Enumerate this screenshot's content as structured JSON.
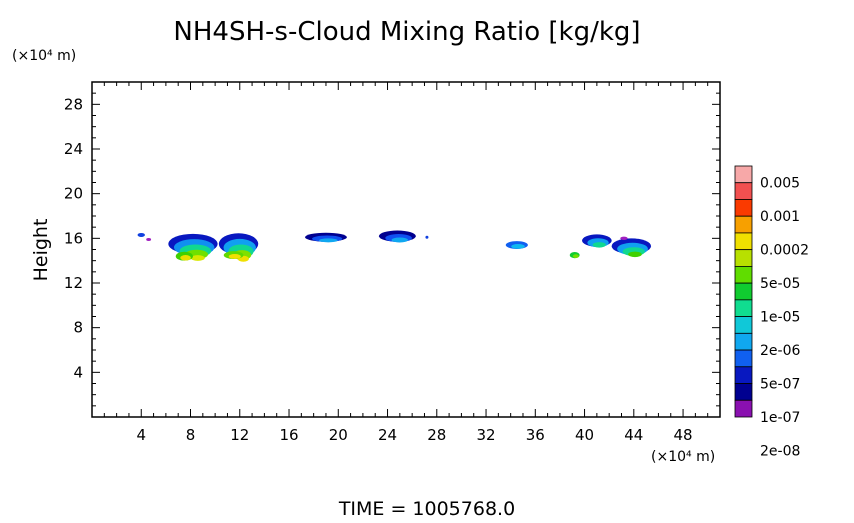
{
  "chart_data": {
    "type": "heatmap",
    "title": "NH4SH-s-Cloud Mixing Ratio [kg/kg]",
    "ylabel": "Height",
    "xlabel": "",
    "y_unit": "(×10⁴ m)",
    "x_unit": "(×10⁴ m)",
    "xlim": [
      0,
      51
    ],
    "ylim": [
      0,
      30
    ],
    "x_ticks": [
      "4",
      "8",
      "12",
      "16",
      "20",
      "24",
      "28",
      "32",
      "36",
      "40",
      "44",
      "48"
    ],
    "y_ticks": [
      "4",
      "8",
      "12",
      "16",
      "20",
      "24",
      "28"
    ],
    "colorbar": {
      "labels": [
        "0.005",
        "0.001",
        "0.0002",
        "5e-05",
        "1e-05",
        "2e-06",
        "5e-07",
        "1e-07",
        "2e-08"
      ],
      "colors": [
        "#f7a8a8",
        "#f25050",
        "#fa3a00",
        "#f7a000",
        "#f0e000",
        "#b8e000",
        "#60dd00",
        "#10cc30",
        "#10dd90",
        "#10c8d8",
        "#10a8f0",
        "#1060f0",
        "#0818c0",
        "#000090",
        "#8a10b0"
      ]
    },
    "cloud_cells": [
      {
        "x": 4.0,
        "y": 16.3,
        "rx": 0.3,
        "ry": 0.18,
        "levels": [
          "#1040e0"
        ]
      },
      {
        "x": 4.6,
        "y": 15.9,
        "rx": 0.2,
        "ry": 0.12,
        "levels": [
          "#a020c0"
        ]
      },
      {
        "x": 8.2,
        "y": 15.5,
        "rx": 2.0,
        "ry": 0.9,
        "levels": [
          "#0818c0",
          "#1090f0",
          "#10d890",
          "#70e000",
          "#d8e800"
        ]
      },
      {
        "x": 7.5,
        "y": 14.4,
        "rx": 0.7,
        "ry": 0.4,
        "levels": [
          "#40d000",
          "#e8e000"
        ]
      },
      {
        "x": 11.9,
        "y": 15.5,
        "rx": 1.6,
        "ry": 0.95,
        "levels": [
          "#0818c0",
          "#10a0f0",
          "#10d890",
          "#80e000",
          "#f0e000"
        ]
      },
      {
        "x": 11.5,
        "y": 14.5,
        "rx": 0.8,
        "ry": 0.35,
        "levels": [
          "#60d800",
          "#f0e000"
        ]
      },
      {
        "x": 19.0,
        "y": 16.1,
        "rx": 1.7,
        "ry": 0.4,
        "levels": [
          "#000090",
          "#1050f0",
          "#10a8f0"
        ]
      },
      {
        "x": 24.8,
        "y": 16.2,
        "rx": 1.5,
        "ry": 0.5,
        "levels": [
          "#000090",
          "#1050f0",
          "#10a8f0"
        ]
      },
      {
        "x": 27.2,
        "y": 16.1,
        "rx": 0.12,
        "ry": 0.08,
        "levels": [
          "#1040e0"
        ]
      },
      {
        "x": 34.5,
        "y": 15.4,
        "rx": 0.9,
        "ry": 0.35,
        "levels": [
          "#1060f0",
          "#10b8f0"
        ]
      },
      {
        "x": 39.2,
        "y": 14.5,
        "rx": 0.4,
        "ry": 0.28,
        "levels": [
          "#10cc30",
          "#70e000"
        ]
      },
      {
        "x": 41.0,
        "y": 15.8,
        "rx": 1.2,
        "ry": 0.55,
        "levels": [
          "#0818c0",
          "#10a0f0",
          "#10d890"
        ]
      },
      {
        "x": 43.8,
        "y": 15.3,
        "rx": 1.6,
        "ry": 0.7,
        "levels": [
          "#0818c0",
          "#10a0f0",
          "#10d890",
          "#40d000"
        ]
      },
      {
        "x": 43.2,
        "y": 16.0,
        "rx": 0.3,
        "ry": 0.15,
        "levels": [
          "#a020c0"
        ]
      }
    ]
  },
  "footer": {
    "time_label": "TIME = 1005768.0"
  }
}
